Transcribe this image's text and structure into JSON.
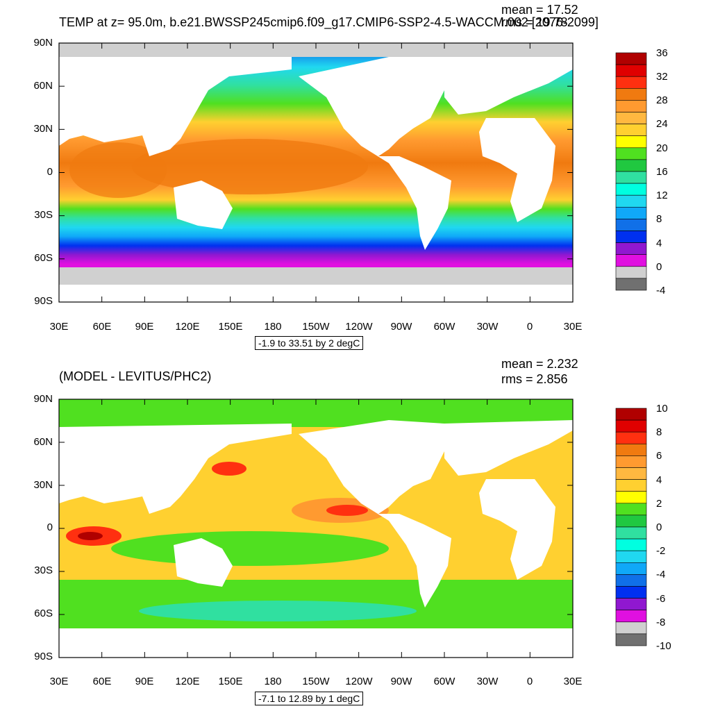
{
  "panels": [
    {
      "title": "TEMP at z=  95.0m, b.e21.BWSSP245cmip6.f09_g17.CMIP6-SSP2-4.5-WACCM.002 [2076-2099]",
      "mean": "mean = 17.52",
      "rms": "rms = 19.78",
      "contour_info": "-1.9 to 33.51 by 2 degC",
      "lat_labels": [
        "90N",
        "60N",
        "30N",
        "0",
        "30S",
        "60S",
        "90S"
      ],
      "lon_labels": [
        "30E",
        "60E",
        "90E",
        "120E",
        "150E",
        "180",
        "150W",
        "120W",
        "90W",
        "60W",
        "30W",
        "0",
        "30E"
      ],
      "colorbar_labels": [
        "36",
        "32",
        "28",
        "24",
        "20",
        "16",
        "12",
        "8",
        "4",
        "0",
        "-4"
      ],
      "colorbar_colors": [
        "#b00000",
        "#e00000",
        "#ff3010",
        "#f07a10",
        "#ff9a30",
        "#ffb840",
        "#ffd030",
        "#ffff00",
        "#50e020",
        "#20c840",
        "#30e0a0",
        "#00ffe0",
        "#20d8f0",
        "#10a8f8",
        "#1070e8",
        "#0030f0",
        "#9018d0",
        "#e010e0",
        "#d0d0d0",
        "#707070"
      ]
    },
    {
      "title": "(MODEL - LEVITUS/PHC2)",
      "mean": "mean = 2.232",
      "rms": "rms = 2.856",
      "contour_info": "-7.1 to 12.89 by 1 degC",
      "lat_labels": [
        "90N",
        "60N",
        "30N",
        "0",
        "30S",
        "60S",
        "90S"
      ],
      "lon_labels": [
        "30E",
        "60E",
        "90E",
        "120E",
        "150E",
        "180",
        "150W",
        "120W",
        "90W",
        "60W",
        "30W",
        "0",
        "30E"
      ],
      "colorbar_labels": [
        "10",
        "8",
        "6",
        "4",
        "2",
        "0",
        "-2",
        "-4",
        "-6",
        "-8",
        "-10"
      ],
      "colorbar_colors": [
        "#b00000",
        "#e00000",
        "#ff3010",
        "#f07a10",
        "#ff9a30",
        "#ffb840",
        "#ffd030",
        "#ffff00",
        "#50e020",
        "#20c840",
        "#30e0a0",
        "#00ffe0",
        "#20d8f0",
        "#10a8f8",
        "#1070e8",
        "#0030f0",
        "#9018d0",
        "#e010e0",
        "#d0d0d0",
        "#707070"
      ]
    }
  ]
}
